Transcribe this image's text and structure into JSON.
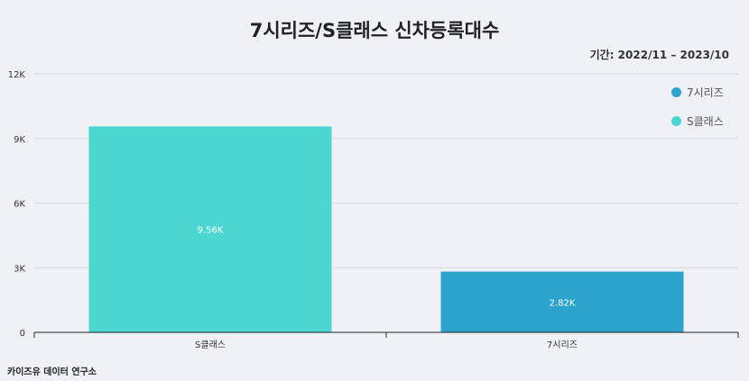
{
  "header": {
    "title": "7시리즈/S클래스 신차등록대수",
    "period": "기간: 2022/11 – 2023/10"
  },
  "footer": {
    "source": "카이즈유 데이터 연구소"
  },
  "colors": {
    "s_class": "#4bd6d1",
    "series_7": "#2ba3cc",
    "background": "#eef2f6",
    "grid": "#d5dbe1"
  },
  "chart_data": {
    "type": "bar",
    "categories": [
      "S클래스",
      "7시리즈"
    ],
    "values": [
      9560,
      2820
    ],
    "value_labels": [
      "9.56K",
      "2.82K"
    ],
    "bar_colors": [
      "#4bd6d1",
      "#2ba3cc"
    ],
    "ylim": [
      0,
      12000
    ],
    "yticks": [
      0,
      3000,
      6000,
      9000,
      12000
    ],
    "ytick_labels": [
      "0",
      "3K",
      "6K",
      "9K",
      "12K"
    ],
    "grid": true,
    "legend": {
      "position": "top-right",
      "entries": [
        {
          "label": "7시리즈",
          "color": "#2ba3cc"
        },
        {
          "label": "S클래스",
          "color": "#4bd6d1"
        }
      ]
    }
  }
}
